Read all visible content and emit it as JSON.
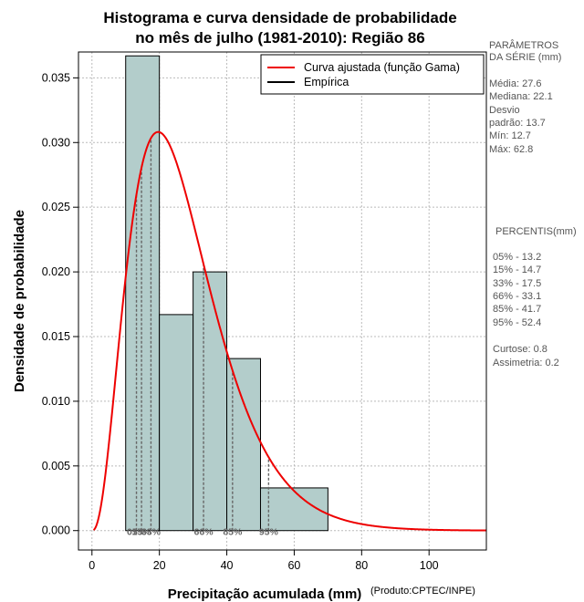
{
  "chart_data": {
    "type": "histogram",
    "title_lines": [
      "Histograma e curva densidade de probabilidade",
      "no mês de julho (1981-2010): Região 86"
    ],
    "xlabel": "Precipitação acumulada (mm)",
    "ylabel": "Densidade de probabilidade",
    "credit": "(Produto:CPTEC/INPE)",
    "xlim": [
      -4,
      117
    ],
    "ylim": [
      -0.0015,
      0.037
    ],
    "x_ticks": [
      0,
      20,
      40,
      60,
      80,
      100
    ],
    "y_ticks": [
      0.0,
      0.005,
      0.01,
      0.015,
      0.02,
      0.025,
      0.03,
      0.035
    ],
    "y_tick_labels": [
      "0.000",
      "0.005",
      "0.010",
      "0.015",
      "0.020",
      "0.025",
      "0.030",
      "0.035"
    ],
    "grid": true,
    "bins": [
      {
        "start": 10,
        "end": 20,
        "density": 0.0367
      },
      {
        "start": 20,
        "end": 30,
        "density": 0.0167
      },
      {
        "start": 30,
        "end": 40,
        "density": 0.02
      },
      {
        "start": 40,
        "end": 50,
        "density": 0.0133
      },
      {
        "start": 50,
        "end": 70,
        "density": 0.0033
      }
    ],
    "fitted_curve": {
      "name": "Curva ajustada (função Gama)",
      "color": "#ee0000",
      "shape": 3.46,
      "scale": 7.98
    },
    "legend": {
      "position": "top-right",
      "entries": [
        {
          "label": "Curva ajustada (função Gama)",
          "color": "#ee0000"
        },
        {
          "label": "Empírica",
          "color": "#000000"
        }
      ]
    },
    "percentile_markers": [
      {
        "label": "05%",
        "value": 13.2
      },
      {
        "label": "15%",
        "value": 14.7
      },
      {
        "label": "33%",
        "value": 17.5
      },
      {
        "label": "66%",
        "value": 33.1
      },
      {
        "label": "85%",
        "value": 41.7
      },
      {
        "label": "95%",
        "value": 52.4
      }
    ],
    "colors": {
      "bar_fill": "#b3cdcb",
      "curve": "#ee0000",
      "grid": "#bbbbbb",
      "marker": "#666666"
    }
  },
  "side_panel": {
    "params_heading": [
      "PARÂMETROS",
      " DA SÉRIE (mm)"
    ],
    "params": [
      "Média:  27.6",
      "Mediana:  22.1",
      "Desvio",
      "padrão:  13.7",
      "Mín:  12.7",
      "Máx:  62.8"
    ],
    "percentis_heading": "PERCENTIS(mm)",
    "percentis": [
      "05% -  13.2",
      "15% -  14.7",
      "33% -  17.5",
      "66% -  33.1",
      "85% -  41.7",
      "95% -  52.4"
    ],
    "stats": [
      "Curtose:  0.8",
      "Assimetria:  0.2"
    ]
  }
}
